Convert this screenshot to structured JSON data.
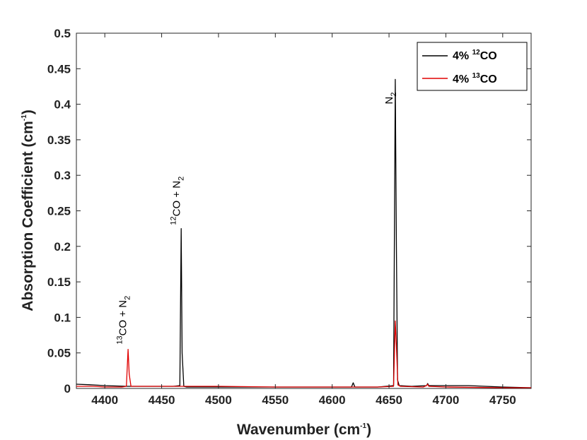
{
  "chart_data": {
    "type": "line",
    "title": "",
    "xlabel": "Wavenumber (cm",
    "xlabel_sup": "-1",
    "xlabel_tail": ")",
    "ylabel": "Absorption Coefficient (cm",
    "ylabel_sup": "-1",
    "ylabel_tail": ")",
    "xlim": [
      4375,
      4775
    ],
    "ylim": [
      0,
      0.5
    ],
    "xticks": [
      4400,
      4450,
      4500,
      4550,
      4600,
      4650,
      4700,
      4750
    ],
    "yticks": [
      0,
      0.05,
      0.1,
      0.15,
      0.2,
      0.25,
      0.3,
      0.35,
      0.4,
      0.45,
      0.5
    ],
    "ytick_labels": [
      "0",
      "0.05",
      "0.1",
      "0.15",
      "0.2",
      "0.25",
      "0.3",
      "0.35",
      "0.4",
      "0.45",
      "0.5"
    ],
    "grid": false,
    "legend_position": "top-right",
    "series": [
      {
        "name_prefix": "4% ",
        "name_sup": "12",
        "name_suffix": "CO",
        "color": "#000000",
        "x": [
          4375,
          4390,
          4400,
          4420,
          4440,
          4460,
          4466,
          4467.2,
          4468,
          4469.5,
          4472,
          4500,
          4550,
          4600,
          4617,
          4618.5,
          4620,
          4640,
          4654,
          4655.5,
          4656.5,
          4657.5,
          4659,
          4670,
          4683,
          4684,
          4685,
          4700,
          4720,
          4750,
          4775
        ],
        "y": [
          0.006,
          0.005,
          0.004,
          0.003,
          0.003,
          0.003,
          0.004,
          0.225,
          0.05,
          0.003,
          0.002,
          0.002,
          0.002,
          0.002,
          0.002,
          0.008,
          0.002,
          0.002,
          0.004,
          0.435,
          0.2,
          0.012,
          0.004,
          0.003,
          0.004,
          0.007,
          0.004,
          0.004,
          0.004,
          0.002,
          0.001
        ]
      },
      {
        "name_prefix": "4% ",
        "name_sup": "13",
        "name_suffix": "CO",
        "color": "#e00000",
        "x": [
          4375,
          4390,
          4400,
          4415,
          4419,
          4420.5,
          4421.5,
          4423,
          4440,
          4470,
          4500,
          4550,
          4600,
          4640,
          4654,
          4655.5,
          4656.5,
          4657.8,
          4660,
          4680,
          4683,
          4684,
          4685,
          4700,
          4750,
          4775
        ],
        "y": [
          0.003,
          0.003,
          0.002,
          0.002,
          0.003,
          0.055,
          0.02,
          0.003,
          0.003,
          0.003,
          0.003,
          0.002,
          0.002,
          0.002,
          0.003,
          0.095,
          0.06,
          0.005,
          0.003,
          0.002,
          0.004,
          0.006,
          0.003,
          0.002,
          0.001,
          0.001
        ]
      }
    ],
    "annotations": [
      {
        "pre_sup": "13",
        "text": "CO + N",
        "sub": "2",
        "x": 4419,
        "y": 0.062
      },
      {
        "pre_sup": "12",
        "text": "CO + N",
        "sub": "2",
        "x": 4466,
        "y": 0.23
      },
      {
        "pre_sup": "",
        "text": "N",
        "sub": "2",
        "x": 4653,
        "y": 0.4
      }
    ]
  }
}
